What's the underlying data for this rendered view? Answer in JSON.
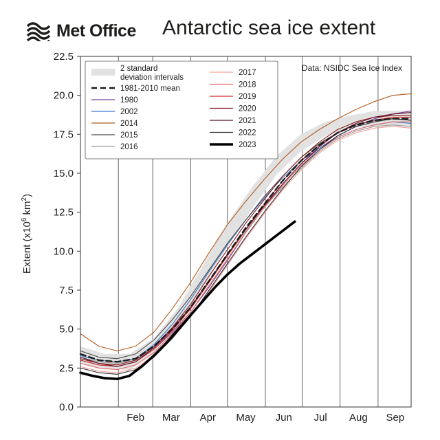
{
  "header": {
    "logo_text": "Met Office",
    "title": "Antarctic sea ice extent"
  },
  "icons": {
    "logo": "met-office-wave-logo"
  },
  "colors": {
    "band": "#e2e2e2",
    "mean": "#1a1a1a",
    "1980": "#7b3f98",
    "2002": "#3a78c9",
    "2014": "#b35a1f",
    "2015": "#4a4a4a",
    "2016": "#9a9a9a",
    "2017": "#f3a39a",
    "2018": "#e56b66",
    "2019": "#d42a2a",
    "2020": "#8b1a1a",
    "2021": "#5e1026",
    "2022": "#2b2b2b",
    "2023": "#000000"
  },
  "chart_data": {
    "type": "line",
    "title": "Antarctic sea ice extent",
    "source": "Data: NSIDC Sea Ice Index",
    "ylabel": "Extent (x10",
    "ylabel_sup": "6",
    "ylabel_unit": " km",
    "ylabel_sup2": "2",
    "ylabel_end": ")",
    "ylim": [
      0,
      22.5
    ],
    "yticks": [
      "0.0",
      "2.5",
      "5.0",
      "7.5",
      "10.0",
      "12.5",
      "15.0",
      "17.5",
      "20.0",
      "22.5"
    ],
    "xlim": [
      0,
      270
    ],
    "months": [
      {
        "label": "Feb",
        "x": 45
      },
      {
        "label": "Mar",
        "x": 74
      },
      {
        "label": "Apr",
        "x": 104
      },
      {
        "label": "May",
        "x": 135
      },
      {
        "label": "Jun",
        "x": 166
      },
      {
        "label": "Jul",
        "x": 196
      },
      {
        "label": "Aug",
        "x": 227
      },
      {
        "label": "Sep",
        "x": 257
      }
    ],
    "month_boundaries": [
      31,
      59,
      90,
      120,
      151,
      181,
      212,
      243
    ],
    "grid": "vertical",
    "legend_position": "top-left",
    "band": {
      "name": "2 standard deviation intervals",
      "x": [
        0,
        20,
        40,
        60,
        80,
        100,
        120,
        140,
        160,
        180,
        200,
        220,
        240,
        260,
        270
      ],
      "low": [
        2.8,
        2.4,
        2.4,
        3.4,
        5.2,
        7.6,
        10.3,
        12.7,
        14.9,
        16.4,
        17.4,
        17.9,
        18.0,
        18.0,
        18.0
      ],
      "high": [
        3.9,
        3.4,
        3.4,
        4.4,
        6.4,
        9.1,
        11.8,
        14.1,
        16.1,
        17.5,
        18.3,
        18.7,
        19.0,
        19.0,
        19.0
      ]
    },
    "series": [
      {
        "name": "1981-2010 mean",
        "style": "dashed",
        "x": [
          0,
          15,
          30,
          45,
          60,
          75,
          90,
          105,
          120,
          135,
          150,
          165,
          180,
          195,
          210,
          225,
          240,
          255,
          270
        ],
        "y": [
          3.4,
          3.0,
          2.9,
          3.1,
          3.9,
          5.0,
          6.4,
          8.1,
          9.8,
          11.5,
          13.0,
          14.5,
          15.8,
          16.8,
          17.6,
          18.1,
          18.4,
          18.5,
          18.5
        ]
      },
      {
        "name": "1980",
        "x": [
          0,
          15,
          30,
          45,
          60,
          75,
          90,
          105,
          120,
          135,
          150,
          165,
          180,
          195,
          210,
          225,
          240,
          255,
          270
        ],
        "y": [
          3.0,
          2.7,
          2.6,
          2.9,
          3.7,
          4.8,
          6.1,
          7.7,
          9.4,
          11.2,
          12.8,
          14.3,
          15.6,
          16.6,
          17.4,
          18.0,
          18.5,
          18.8,
          19.0
        ]
      },
      {
        "name": "2002",
        "x": [
          0,
          15,
          30,
          45,
          60,
          75,
          90,
          105,
          120,
          135,
          150,
          165,
          180,
          195,
          210,
          225,
          240,
          255,
          270
        ],
        "y": [
          3.3,
          3.0,
          2.9,
          3.1,
          4.0,
          5.3,
          6.9,
          8.7,
          10.4,
          12.0,
          13.4,
          14.7,
          15.8,
          16.6,
          17.3,
          17.8,
          18.1,
          18.3,
          18.2
        ]
      },
      {
        "name": "2014",
        "x": [
          0,
          15,
          30,
          45,
          60,
          75,
          90,
          105,
          120,
          135,
          150,
          165,
          180,
          195,
          210,
          225,
          240,
          255,
          270
        ],
        "y": [
          4.7,
          3.9,
          3.6,
          3.9,
          4.8,
          6.3,
          8.0,
          9.9,
          11.7,
          13.2,
          14.6,
          15.9,
          17.0,
          17.8,
          18.5,
          19.1,
          19.6,
          20.0,
          20.1
        ]
      },
      {
        "name": "2015",
        "x": [
          0,
          15,
          30,
          45,
          60,
          75,
          90,
          105,
          120,
          135,
          150,
          165,
          180,
          195,
          210,
          225,
          240,
          255,
          270
        ],
        "y": [
          3.6,
          3.2,
          3.1,
          3.4,
          4.3,
          5.6,
          7.1,
          8.8,
          10.5,
          12.0,
          13.5,
          14.8,
          16.0,
          16.9,
          17.6,
          18.1,
          18.4,
          18.5,
          18.4
        ]
      },
      {
        "name": "2016",
        "x": [
          0,
          15,
          30,
          45,
          60,
          75,
          90,
          105,
          120,
          135,
          150,
          165,
          180,
          195,
          210,
          225,
          240,
          255,
          270
        ],
        "y": [
          3.2,
          2.9,
          2.8,
          3.0,
          3.8,
          5.0,
          6.4,
          8.0,
          9.7,
          11.3,
          12.8,
          14.1,
          15.3,
          16.4,
          17.2,
          17.7,
          18.0,
          18.1,
          18.0
        ]
      },
      {
        "name": "2017",
        "x": [
          0,
          15,
          30,
          45,
          60,
          75,
          90,
          105,
          120,
          135,
          150,
          165,
          180,
          195,
          210,
          225,
          240,
          255,
          270
        ],
        "y": [
          2.6,
          2.3,
          2.2,
          2.5,
          3.3,
          4.4,
          5.8,
          7.4,
          9.1,
          10.8,
          12.4,
          13.9,
          15.2,
          16.3,
          17.1,
          17.6,
          17.9,
          18.0,
          17.9
        ]
      },
      {
        "name": "2018",
        "x": [
          0,
          15,
          30,
          45,
          60,
          75,
          90,
          105,
          120,
          135,
          150,
          165,
          180,
          195,
          210,
          225,
          240,
          255,
          270
        ],
        "y": [
          2.8,
          2.5,
          2.4,
          2.7,
          3.5,
          4.7,
          6.1,
          7.8,
          9.5,
          11.2,
          12.8,
          14.2,
          15.5,
          16.5,
          17.3,
          17.8,
          18.1,
          18.3,
          18.3
        ]
      },
      {
        "name": "2019",
        "x": [
          0,
          15,
          30,
          45,
          60,
          75,
          90,
          105,
          120,
          135,
          150,
          165,
          180,
          195,
          210,
          225,
          240,
          255,
          270
        ],
        "y": [
          3.0,
          2.7,
          2.6,
          2.9,
          3.7,
          4.9,
          6.3,
          8.0,
          9.7,
          11.4,
          13.0,
          14.5,
          15.8,
          16.8,
          17.6,
          18.1,
          18.4,
          18.6,
          18.6
        ]
      },
      {
        "name": "2020",
        "x": [
          0,
          15,
          30,
          45,
          60,
          75,
          90,
          105,
          120,
          135,
          150,
          165,
          180,
          195,
          210,
          225,
          240,
          255,
          270
        ],
        "y": [
          3.1,
          2.8,
          2.7,
          3.0,
          3.9,
          5.1,
          6.6,
          8.4,
          10.1,
          11.8,
          13.3,
          14.8,
          16.0,
          17.0,
          17.8,
          18.3,
          18.6,
          18.7,
          18.7
        ]
      },
      {
        "name": "2021",
        "x": [
          0,
          15,
          30,
          45,
          60,
          75,
          90,
          105,
          120,
          135,
          150,
          165,
          180,
          195,
          210,
          225,
          240,
          255,
          270
        ],
        "y": [
          3.2,
          2.8,
          2.6,
          2.9,
          3.8,
          5.0,
          6.4,
          8.1,
          9.8,
          11.4,
          12.9,
          14.3,
          15.6,
          16.7,
          17.6,
          18.2,
          18.6,
          18.8,
          18.9
        ]
      },
      {
        "name": "2022",
        "x": [
          0,
          15,
          30,
          45,
          60,
          75,
          90,
          105,
          120,
          135,
          150,
          165,
          180,
          195,
          210,
          225,
          240,
          255,
          270
        ],
        "y": [
          2.5,
          2.2,
          2.1,
          2.4,
          3.2,
          4.4,
          5.8,
          7.5,
          9.2,
          10.9,
          12.5,
          14.0,
          15.4,
          16.5,
          17.4,
          18.0,
          18.3,
          18.5,
          18.4
        ]
      },
      {
        "name": "2023",
        "style": "bold",
        "x": [
          0,
          10,
          20,
          30,
          40,
          50,
          60,
          70,
          80,
          90,
          100,
          110,
          120,
          130,
          140,
          150,
          160,
          170,
          175
        ],
        "y": [
          2.2,
          2.0,
          1.85,
          1.8,
          2.0,
          2.6,
          3.3,
          4.1,
          5.0,
          5.9,
          6.8,
          7.7,
          8.5,
          9.2,
          9.8,
          10.4,
          11.0,
          11.6,
          11.9
        ]
      }
    ]
  }
}
